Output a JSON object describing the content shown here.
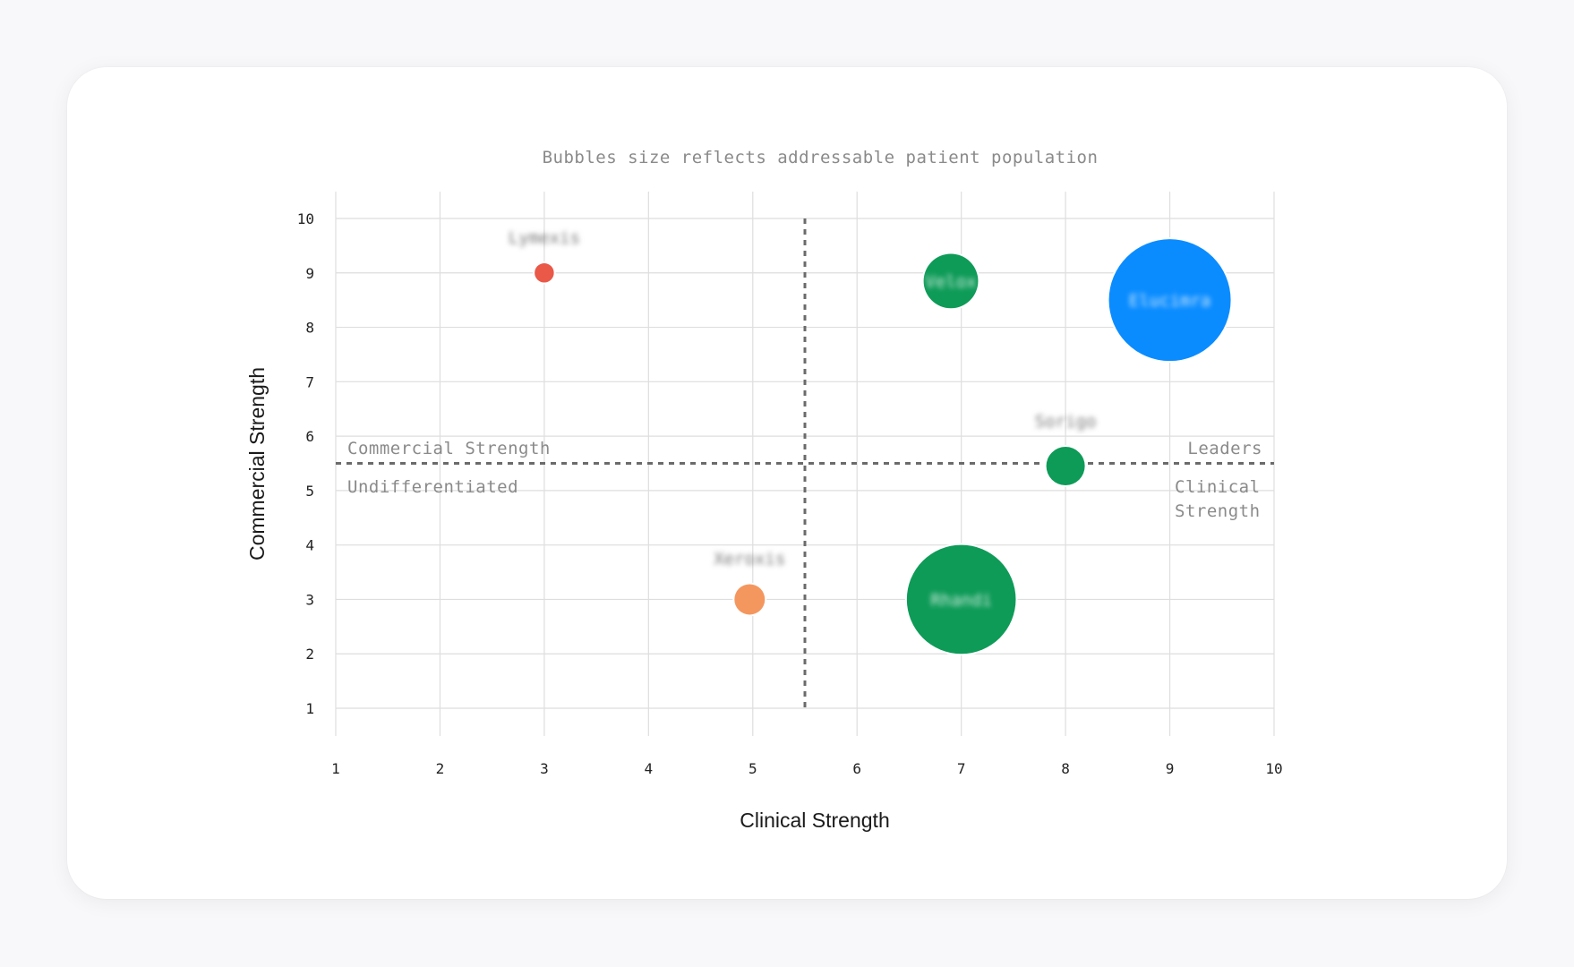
{
  "chart_data": {
    "type": "bubble",
    "subtitle": "Bubbles size reflects addressable patient population",
    "xlabel": "Clinical Strength",
    "ylabel": "Commercial Strength",
    "xlim": [
      1,
      10
    ],
    "ylim": [
      1,
      10
    ],
    "xticks": [
      1,
      2,
      3,
      4,
      5,
      6,
      7,
      8,
      9,
      10
    ],
    "yticks": [
      1,
      2,
      3,
      4,
      5,
      6,
      7,
      8,
      9,
      10
    ],
    "grid": true,
    "divider": {
      "x": 5.5,
      "y": 5.5
    },
    "quadrant_labels": {
      "top_left": "Commercial Strength",
      "bottom_left": "Undifferentiated",
      "top_right": "Leaders",
      "bottom_right": [
        "Clinical",
        "Strength"
      ]
    },
    "points": [
      {
        "label": "Lymexis",
        "x": 3.0,
        "y": 9.0,
        "size": 1,
        "color": "#ea5848",
        "label_position": "above",
        "label_blurred": true
      },
      {
        "label": "Velox",
        "x": 6.9,
        "y": 8.85,
        "size": 8,
        "color": "#0e9b58",
        "label_position": "inside",
        "label_blurred": true
      },
      {
        "label": "Elucimra",
        "x": 9.0,
        "y": 8.5,
        "size": 40,
        "color": "#0a8cff",
        "label_position": "inside",
        "label_blurred": true
      },
      {
        "label": "Sorigo",
        "x": 8.0,
        "y": 5.45,
        "size": 4,
        "color": "#0e9b58",
        "label_position": "above",
        "label_blurred": true
      },
      {
        "label": "Xeroxis",
        "x": 4.97,
        "y": 3.0,
        "size": 2.5,
        "color": "#f4975f",
        "label_position": "above",
        "label_blurred": true
      },
      {
        "label": "Rhandi",
        "x": 7.0,
        "y": 3.0,
        "size": 32,
        "color": "#0e9b58",
        "label_position": "inside",
        "label_blurred": true
      }
    ]
  },
  "colors": {
    "background": "#f8f8fa",
    "card": "#ffffff",
    "grid": "#dedede",
    "divider": "#6b6b6b",
    "tick_text": "#222222",
    "axis_title": "#1a1a1a",
    "muted_text": "#8a8a8a"
  }
}
